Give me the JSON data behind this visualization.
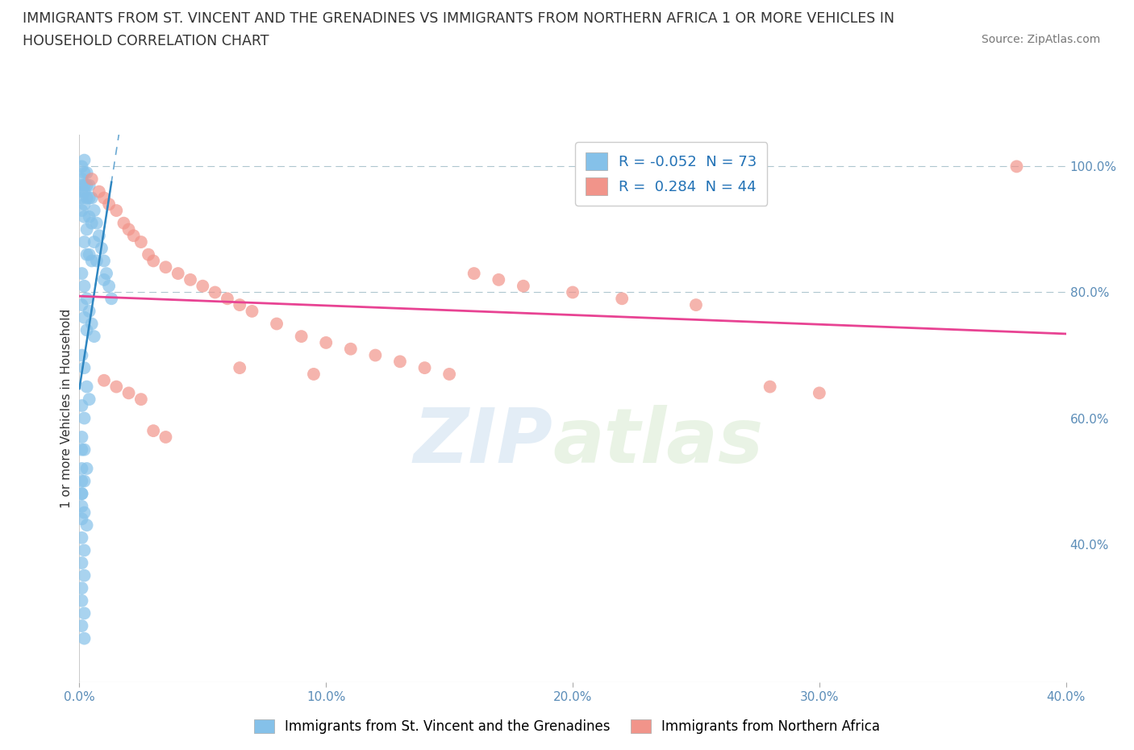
{
  "title_line1": "IMMIGRANTS FROM ST. VINCENT AND THE GRENADINES VS IMMIGRANTS FROM NORTHERN AFRICA 1 OR MORE VEHICLES IN",
  "title_line2": "HOUSEHOLD CORRELATION CHART",
  "source": "Source: ZipAtlas.com",
  "ylabel": "1 or more Vehicles in Household",
  "xlabel_blue": "Immigrants from St. Vincent and the Grenadines",
  "xlabel_pink": "Immigrants from Northern Africa",
  "watermark_zip": "ZIP",
  "watermark_atlas": "atlas",
  "R_blue": -0.052,
  "N_blue": 73,
  "R_pink": 0.284,
  "N_pink": 44,
  "xlim": [
    0.0,
    0.4
  ],
  "ylim": [
    0.18,
    1.05
  ],
  "ytick_vals": [
    0.4,
    0.6,
    0.8,
    1.0
  ],
  "ytick_labels": [
    "40.0%",
    "60.0%",
    "80.0%",
    "100.0%"
  ],
  "xtick_vals": [
    0.0,
    0.1,
    0.2,
    0.3,
    0.4
  ],
  "xtick_labels": [
    "0.0%",
    "10.0%",
    "20.0%",
    "30.0%",
    "40.0%"
  ],
  "blue_color": "#85c1e9",
  "pink_color": "#f1948a",
  "blue_line_color": "#2e86c1",
  "pink_line_color": "#e84393",
  "grid_color": "#aec6cf",
  "blue_scatter_x": [
    0.001,
    0.001,
    0.001,
    0.001,
    0.001,
    0.001,
    0.002,
    0.002,
    0.002,
    0.002,
    0.002,
    0.002,
    0.002,
    0.003,
    0.003,
    0.003,
    0.003,
    0.003,
    0.004,
    0.004,
    0.004,
    0.004,
    0.005,
    0.005,
    0.005,
    0.006,
    0.006,
    0.007,
    0.007,
    0.008,
    0.009,
    0.01,
    0.01,
    0.011,
    0.012,
    0.013,
    0.001,
    0.001,
    0.002,
    0.002,
    0.003,
    0.003,
    0.004,
    0.005,
    0.006,
    0.001,
    0.002,
    0.003,
    0.004,
    0.001,
    0.002,
    0.001,
    0.002,
    0.003,
    0.001,
    0.001,
    0.002,
    0.003,
    0.001,
    0.002,
    0.001,
    0.002,
    0.001,
    0.001,
    0.002,
    0.001,
    0.002,
    0.001,
    0.001,
    0.002,
    0.001,
    0.001,
    0.001
  ],
  "blue_scatter_y": [
    1.0,
    0.98,
    0.97,
    0.96,
    0.95,
    0.93,
    1.01,
    0.99,
    0.97,
    0.96,
    0.94,
    0.92,
    0.88,
    0.99,
    0.97,
    0.95,
    0.9,
    0.86,
    0.97,
    0.95,
    0.92,
    0.86,
    0.95,
    0.91,
    0.85,
    0.93,
    0.88,
    0.91,
    0.85,
    0.89,
    0.87,
    0.85,
    0.82,
    0.83,
    0.81,
    0.79,
    0.83,
    0.78,
    0.81,
    0.76,
    0.79,
    0.74,
    0.77,
    0.75,
    0.73,
    0.7,
    0.68,
    0.65,
    0.63,
    0.62,
    0.6,
    0.57,
    0.55,
    0.52,
    0.5,
    0.48,
    0.45,
    0.43,
    0.41,
    0.39,
    0.37,
    0.35,
    0.33,
    0.31,
    0.29,
    0.27,
    0.25,
    0.55,
    0.52,
    0.5,
    0.48,
    0.46,
    0.44
  ],
  "pink_scatter_x": [
    0.005,
    0.008,
    0.01,
    0.012,
    0.015,
    0.018,
    0.02,
    0.022,
    0.025,
    0.028,
    0.03,
    0.035,
    0.04,
    0.045,
    0.05,
    0.055,
    0.06,
    0.065,
    0.07,
    0.08,
    0.09,
    0.1,
    0.11,
    0.12,
    0.13,
    0.14,
    0.15,
    0.16,
    0.17,
    0.18,
    0.2,
    0.22,
    0.25,
    0.28,
    0.3,
    0.38,
    0.01,
    0.015,
    0.02,
    0.025,
    0.03,
    0.035,
    0.065,
    0.095
  ],
  "pink_scatter_y": [
    0.98,
    0.96,
    0.95,
    0.94,
    0.93,
    0.91,
    0.9,
    0.89,
    0.88,
    0.86,
    0.85,
    0.84,
    0.83,
    0.82,
    0.81,
    0.8,
    0.79,
    0.78,
    0.77,
    0.75,
    0.73,
    0.72,
    0.71,
    0.7,
    0.69,
    0.68,
    0.67,
    0.83,
    0.82,
    0.81,
    0.8,
    0.79,
    0.78,
    0.65,
    0.64,
    1.0,
    0.66,
    0.65,
    0.64,
    0.63,
    0.58,
    0.57,
    0.68,
    0.67
  ]
}
